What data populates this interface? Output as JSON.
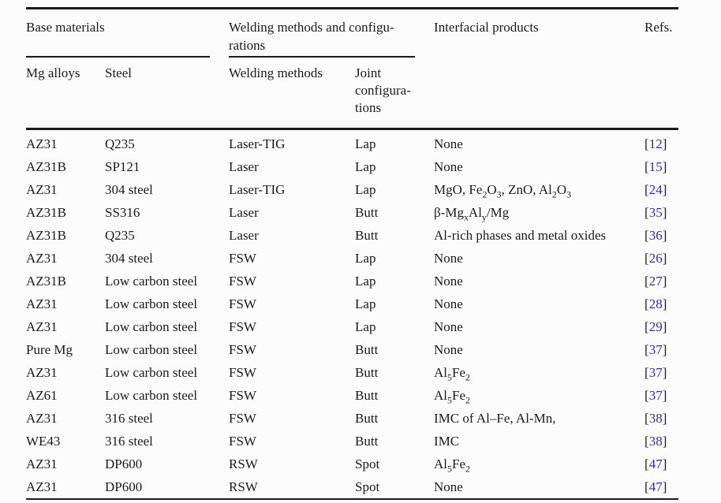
{
  "page": {
    "background": "#fcfcfc"
  },
  "colors": {
    "text": "#1b1b1b",
    "rule": "#1c1c1c",
    "ref_link": "#2e2eb8"
  },
  "table": {
    "group_headers": {
      "base_materials": "Base materials",
      "welding": "Welding methods and configu-\nrations",
      "interfacial": "Interfacial products",
      "refs": "Refs."
    },
    "sub_headers": {
      "mg_alloys": "Mg alloys",
      "steel": "Steel",
      "welding_methods": "Welding methods",
      "joint": "Joint\nconfigura-\ntions"
    },
    "rows": [
      {
        "mg_alloy": "AZ31",
        "steel": "Q235",
        "welding_method": "Laser-TIG",
        "joint": "Lap",
        "interfacial": "None",
        "ref": "[12]"
      },
      {
        "mg_alloy": "AZ31B",
        "steel": "SP121",
        "welding_method": "Laser",
        "joint": "Lap",
        "interfacial": "None",
        "ref": "[15]"
      },
      {
        "mg_alloy": "AZ31",
        "steel": "304 steel",
        "welding_method": "Laser-TIG",
        "joint": "Lap",
        "interfacial": "MgO, Fe₂O₃, ZnO, Al₂O₃",
        "ref": "[24]"
      },
      {
        "mg_alloy": "AZ31B",
        "steel": "SS316",
        "welding_method": "Laser",
        "joint": "Butt",
        "interfacial": "β-MgₓAlᵧ/Mg",
        "ref": "[35]"
      },
      {
        "mg_alloy": "AZ31B",
        "steel": "Q235",
        "welding_method": "Laser",
        "joint": "Butt",
        "interfacial": "Al-rich phases and metal oxides",
        "ref": "[36]"
      },
      {
        "mg_alloy": "AZ31",
        "steel": "304 steel",
        "welding_method": "FSW",
        "joint": "Lap",
        "interfacial": "None",
        "ref": "[26]"
      },
      {
        "mg_alloy": "AZ31B",
        "steel": "Low carbon steel",
        "welding_method": "FSW",
        "joint": "Lap",
        "interfacial": "None",
        "ref": "[27]"
      },
      {
        "mg_alloy": "AZ31",
        "steel": "Low carbon steel",
        "welding_method": "FSW",
        "joint": "Lap",
        "interfacial": "None",
        "ref": "[28]"
      },
      {
        "mg_alloy": "AZ31",
        "steel": "Low carbon steel",
        "welding_method": "FSW",
        "joint": "Lap",
        "interfacial": "None",
        "ref": "[29]"
      },
      {
        "mg_alloy": "Pure Mg",
        "steel": "Low carbon steel",
        "welding_method": "FSW",
        "joint": "Butt",
        "interfacial": "None",
        "ref": "[37]"
      },
      {
        "mg_alloy": "AZ31",
        "steel": "Low carbon steel",
        "welding_method": "FSW",
        "joint": "Butt",
        "interfacial": "Al₅Fe₂",
        "ref": "[37]"
      },
      {
        "mg_alloy": "AZ61",
        "steel": "Low carbon steel",
        "welding_method": "FSW",
        "joint": "Butt",
        "interfacial": "Al₅Fe₂",
        "ref": "[37]"
      },
      {
        "mg_alloy": "AZ31",
        "steel": "316 steel",
        "welding_method": "FSW",
        "joint": "Butt",
        "interfacial": "IMC of Al–Fe, Al-Mn,",
        "ref": "[38]"
      },
      {
        "mg_alloy": "WE43",
        "steel": "316 steel",
        "welding_method": "FSW",
        "joint": "Butt",
        "interfacial": "IMC",
        "ref": "[38]"
      },
      {
        "mg_alloy": "AZ31",
        "steel": "DP600",
        "welding_method": "RSW",
        "joint": "Spot",
        "interfacial": "Al₅Fe₂",
        "ref": "[47]"
      },
      {
        "mg_alloy": "AZ31",
        "steel": "DP600",
        "welding_method": "RSW",
        "joint": "Spot",
        "interfacial": "None",
        "ref": "[47]"
      }
    ]
  }
}
